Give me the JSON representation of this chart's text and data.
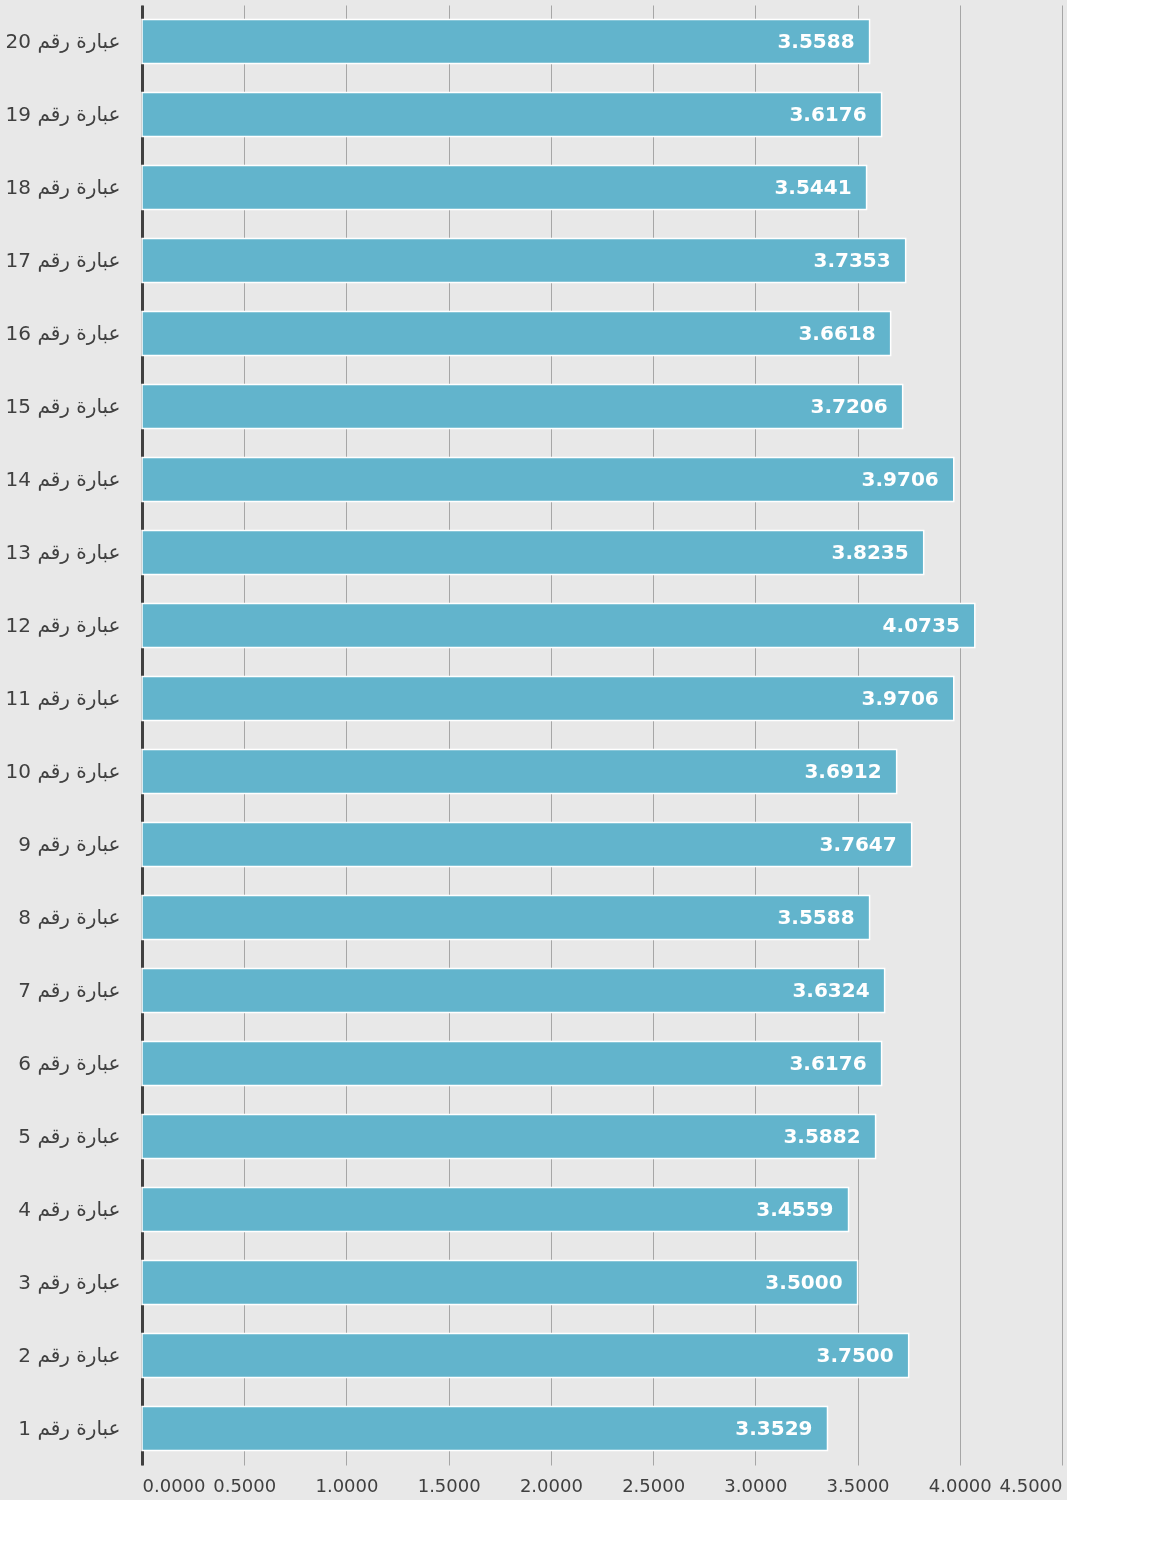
{
  "chart_data": {
    "type": "bar",
    "orientation": "horizontal",
    "categories": [
      "عبارة رقم 20",
      "عبارة رقم 19",
      "عبارة رقم 18",
      "عبارة رقم 17",
      "عبارة رقم 16",
      "عبارة رقم 15",
      "عبارة رقم 14",
      "عبارة رقم 13",
      "عبارة رقم 12",
      "عبارة رقم 11",
      "عبارة رقم 10",
      "عبارة رقم 9",
      "عبارة رقم 8",
      "عبارة رقم 7",
      "عبارة رقم 6",
      "عبارة رقم 5",
      "عبارة رقم 4",
      "عبارة رقم 3",
      "عبارة رقم 2",
      "عبارة رقم 1"
    ],
    "values": [
      3.5588,
      3.6176,
      3.5441,
      3.7353,
      3.6618,
      3.7206,
      3.9706,
      3.8235,
      4.0735,
      3.9706,
      3.6912,
      3.7647,
      3.5588,
      3.6324,
      3.6176,
      3.5882,
      3.4559,
      3.5,
      3.75,
      3.3529
    ],
    "value_labels": [
      "3.5588",
      "3.6176",
      "3.5441",
      "3.7353",
      "3.6618",
      "3.7206",
      "3.9706",
      "3.8235",
      "4.0735",
      "3.9706",
      "3.6912",
      "3.7647",
      "3.5588",
      "3.6324",
      "3.6176",
      "3.5882",
      "3.4559",
      "3.5000",
      "3.7500",
      "3.3529"
    ],
    "color": "#62b4cc",
    "xlim": [
      0,
      4.5
    ],
    "xticks": [
      {
        "value": 0,
        "label": "0.0000"
      },
      {
        "value": 0.5,
        "label": "0.5000"
      },
      {
        "value": 1,
        "label": "1.0000"
      },
      {
        "value": 1.5,
        "label": "1.5000"
      },
      {
        "value": 2,
        "label": "2.0000"
      },
      {
        "value": 2.5,
        "label": "2.5000"
      },
      {
        "value": 3,
        "label": "3.0000"
      },
      {
        "value": 3.5,
        "label": "3.5000"
      },
      {
        "value": 4,
        "label": "4.0000"
      },
      {
        "value": 4.5,
        "label": "4.5000"
      }
    ],
    "grid": "x"
  }
}
